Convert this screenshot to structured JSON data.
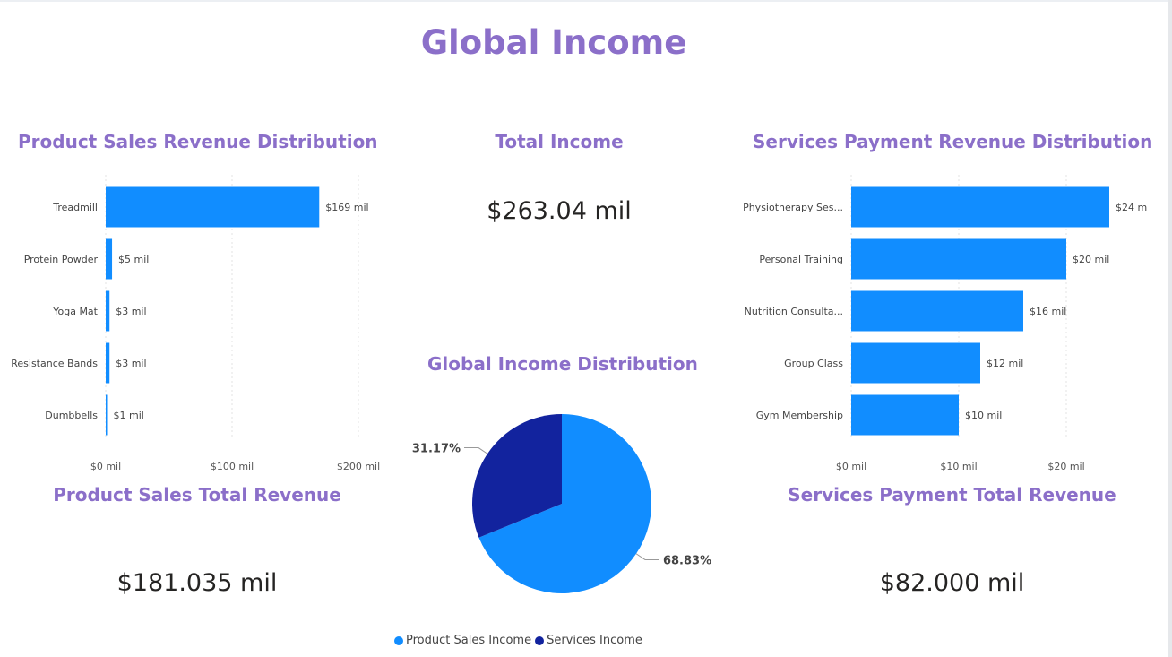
{
  "page": {
    "title": "Global Income"
  },
  "colors": {
    "title": "#8b6fc9",
    "bar": "#118dff",
    "product_slice": "#118dff",
    "services_slice": "#12239e"
  },
  "product_panel": {
    "title": "Product Sales Revenue Distribution",
    "total_title": "Product Sales Total Revenue",
    "total_value": "$181.035 mil"
  },
  "total_panel": {
    "title": "Total Income",
    "value": "$263.04 mil"
  },
  "services_panel": {
    "title": "Services Payment Revenue Distribution",
    "total_title": "Services Payment Total Revenue",
    "total_value": "$82.000 mil"
  },
  "pie_panel": {
    "title": "Global Income Distribution"
  },
  "chart_data": [
    {
      "type": "bar",
      "orientation": "horizontal",
      "title": "Product Sales Revenue Distribution",
      "categories": [
        "Treadmill",
        "Protein Powder",
        "Yoga Mat",
        "Resistance Bands",
        "Dumbbells"
      ],
      "values": [
        169,
        5,
        3,
        3,
        1
      ],
      "value_labels": [
        "$169 mil",
        "$5 mil",
        "$3 mil",
        "$3 mil",
        "$1 mil"
      ],
      "xlim": [
        0,
        200
      ],
      "xticks": [
        0,
        100,
        200
      ],
      "xtick_labels": [
        "$0 mil",
        "$100 mil",
        "$200 mil"
      ],
      "grid": true
    },
    {
      "type": "bar",
      "orientation": "horizontal",
      "title": "Services Payment Revenue Distribution",
      "categories": [
        "Physiotherapy Ses...",
        "Personal Training",
        "Nutrition Consulta...",
        "Group Class",
        "Gym Membership"
      ],
      "values": [
        24,
        20,
        16,
        12,
        10
      ],
      "value_labels": [
        "$24 mil",
        "$20 mil",
        "$16 mil",
        "$12 mil",
        "$10 mil"
      ],
      "xlim": [
        0,
        25
      ],
      "xticks": [
        0,
        10,
        20
      ],
      "xtick_labels": [
        "$0 mil",
        "$10 mil",
        "$20 mil"
      ],
      "grid": true
    },
    {
      "type": "pie",
      "title": "Global Income Distribution",
      "slices": [
        {
          "name": "Product Sales Income",
          "value": 68.83,
          "label": "68.83%"
        },
        {
          "name": "Services Income",
          "value": 31.17,
          "label": "31.17%"
        }
      ],
      "legend": "bottom"
    }
  ]
}
